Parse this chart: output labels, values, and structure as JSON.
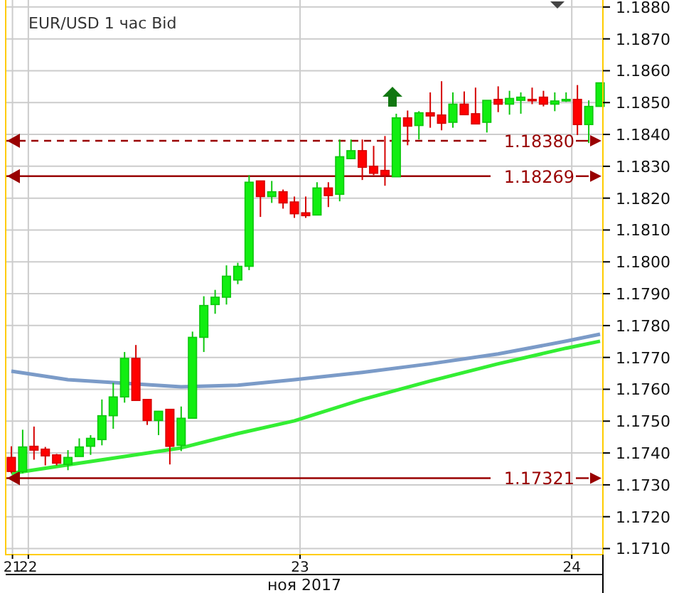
{
  "chart_data": {
    "type": "candlestick",
    "title": "EUR/USD  1 час Bid",
    "xlabel": "ноя 2017",
    "grid": true,
    "xlim": [
      "2017-11-21T22:00",
      "2017-11-24T02:45"
    ],
    "xticks": [
      {
        "value": "2017-11-21T22:36",
        "label": "21"
      },
      {
        "value": "2017-11-22T00:00",
        "label": "22"
      },
      {
        "value": "2017-11-23T00:00",
        "label": "23"
      },
      {
        "value": "2017-11-24T00:00",
        "label": "24"
      }
    ],
    "ylim": [
      1.17081,
      1.18822
    ],
    "yticks": [
      {
        "value": 1.171,
        "label": "1.1710"
      },
      {
        "value": 1.172,
        "label": "1.1720"
      },
      {
        "value": 1.173,
        "label": "1.1730"
      },
      {
        "value": 1.174,
        "label": "1.1740"
      },
      {
        "value": 1.175,
        "label": "1.1750"
      },
      {
        "value": 1.176,
        "label": "1.1760"
      },
      {
        "value": 1.177,
        "label": "1.1770"
      },
      {
        "value": 1.178,
        "label": "1.1780"
      },
      {
        "value": 1.179,
        "label": "1.1790"
      },
      {
        "value": 1.18,
        "label": "1.1800"
      },
      {
        "value": 1.181,
        "label": "1.1810"
      },
      {
        "value": 1.182,
        "label": "1.1820"
      },
      {
        "value": 1.183,
        "label": "1.1830"
      },
      {
        "value": 1.184,
        "label": "1.1840"
      },
      {
        "value": 1.185,
        "label": "1.1850"
      },
      {
        "value": 1.186,
        "label": "1.1860"
      },
      {
        "value": 1.187,
        "label": "1.1870"
      },
      {
        "value": 1.188,
        "label": "1.1880"
      }
    ],
    "x": [
      "2017-11-21T22:30",
      "2017-11-21T23:30",
      "2017-11-22T00:30",
      "2017-11-22T01:30",
      "2017-11-22T02:30",
      "2017-11-22T03:30",
      "2017-11-22T04:30",
      "2017-11-22T05:30",
      "2017-11-22T06:30",
      "2017-11-22T07:30",
      "2017-11-22T08:30",
      "2017-11-22T09:30",
      "2017-11-22T10:30",
      "2017-11-22T11:30",
      "2017-11-22T12:30",
      "2017-11-22T13:30",
      "2017-11-22T14:30",
      "2017-11-22T15:30",
      "2017-11-22T16:30",
      "2017-11-22T17:30",
      "2017-11-22T18:30",
      "2017-11-22T19:30",
      "2017-11-22T20:30",
      "2017-11-22T21:30",
      "2017-11-22T22:30",
      "2017-11-22T23:30",
      "2017-11-23T00:30",
      "2017-11-23T01:30",
      "2017-11-23T02:30",
      "2017-11-23T03:30",
      "2017-11-23T04:30",
      "2017-11-23T05:30",
      "2017-11-23T06:30",
      "2017-11-23T07:30",
      "2017-11-23T08:30",
      "2017-11-23T09:30",
      "2017-11-23T10:30",
      "2017-11-23T11:30",
      "2017-11-23T12:30",
      "2017-11-23T13:30",
      "2017-11-23T14:30",
      "2017-11-23T15:30",
      "2017-11-23T16:30",
      "2017-11-23T17:30",
      "2017-11-23T18:30",
      "2017-11-23T19:30",
      "2017-11-23T20:30",
      "2017-11-23T21:30",
      "2017-11-23T22:30",
      "2017-11-23T23:30",
      "2017-11-24T00:30",
      "2017-11-24T01:30",
      "2017-11-24T02:30"
    ],
    "ohlc": [
      [
        1.17386,
        1.17421,
        1.17336,
        1.17342
      ],
      [
        1.17342,
        1.17473,
        1.17336,
        1.17419
      ],
      [
        1.17421,
        1.17483,
        1.17379,
        1.17409
      ],
      [
        1.17412,
        1.17419,
        1.17361,
        1.17391
      ],
      [
        1.17394,
        1.17397,
        1.17361,
        1.17368
      ],
      [
        1.17364,
        1.17409,
        1.17346,
        1.17386
      ],
      [
        1.17389,
        1.17446,
        1.17389,
        1.17419
      ],
      [
        1.17421,
        1.17456,
        1.17394,
        1.17446
      ],
      [
        1.17442,
        1.17568,
        1.17424,
        1.17517
      ],
      [
        1.17517,
        1.1762,
        1.17476,
        1.17576
      ],
      [
        1.17576,
        1.17717,
        1.17558,
        1.17697
      ],
      [
        1.17697,
        1.17739,
        1.17565,
        1.17565
      ],
      [
        1.17568,
        1.17568,
        1.17488,
        1.17502
      ],
      [
        1.17502,
        1.17532,
        1.17456,
        1.17531
      ],
      [
        1.17537,
        1.17537,
        1.17364,
        1.17421
      ],
      [
        1.17424,
        1.17546,
        1.17406,
        1.17509
      ],
      [
        1.17509,
        1.17781,
        1.17509,
        1.17763
      ],
      [
        1.17763,
        1.17892,
        1.17717,
        1.17863
      ],
      [
        1.17866,
        1.17912,
        1.17837,
        1.17889
      ],
      [
        1.17889,
        1.17989,
        1.17866,
        1.17955
      ],
      [
        1.17943,
        1.17997,
        1.1793,
        1.17986
      ],
      [
        1.17986,
        1.18272,
        1.17974,
        1.1825
      ],
      [
        1.18254,
        1.18254,
        1.18141,
        1.18205
      ],
      [
        1.18205,
        1.18254,
        1.18185,
        1.1822
      ],
      [
        1.1822,
        1.18227,
        1.18167,
        1.18185
      ],
      [
        1.18188,
        1.18205,
        1.18138,
        1.18151
      ],
      [
        1.18154,
        1.18205,
        1.18138,
        1.18145
      ],
      [
        1.18147,
        1.1825,
        1.18147,
        1.18232
      ],
      [
        1.18232,
        1.1825,
        1.18172,
        1.18208
      ],
      [
        1.18212,
        1.18384,
        1.1819,
        1.1833
      ],
      [
        1.18324,
        1.18384,
        1.18324,
        1.18349
      ],
      [
        1.18349,
        1.18384,
        1.18257,
        1.18297
      ],
      [
        1.183,
        1.18364,
        1.18272,
        1.18278
      ],
      [
        1.18287,
        1.18395,
        1.18239,
        1.18272
      ],
      [
        1.18267,
        1.18465,
        1.18267,
        1.18452
      ],
      [
        1.18452,
        1.18475,
        1.18366,
        1.18426
      ],
      [
        1.18428,
        1.18473,
        1.18384,
        1.18468
      ],
      [
        1.18468,
        1.18532,
        1.18421,
        1.18458
      ],
      [
        1.18461,
        1.18567,
        1.18413,
        1.18435
      ],
      [
        1.18438,
        1.18532,
        1.18421,
        1.18495
      ],
      [
        1.18495,
        1.18535,
        1.18462,
        1.18462
      ],
      [
        1.18465,
        1.18547,
        1.18433,
        1.18433
      ],
      [
        1.18438,
        1.18507,
        1.18406,
        1.18507
      ],
      [
        1.1851,
        1.18551,
        1.1847,
        1.18495
      ],
      [
        1.18495,
        1.18537,
        1.18462,
        1.18513
      ],
      [
        1.18507,
        1.18532,
        1.18465,
        1.18517
      ],
      [
        1.1851,
        1.18547,
        1.18495,
        1.18507
      ],
      [
        1.18517,
        1.18537,
        1.18488,
        1.18495
      ],
      [
        1.18495,
        1.18532,
        1.18473,
        1.18505
      ],
      [
        1.18505,
        1.18532,
        1.18502,
        1.1851
      ],
      [
        1.1851,
        1.18555,
        1.18398,
        1.18431
      ],
      [
        1.18431,
        1.18507,
        1.18373,
        1.18488
      ],
      [
        1.18488,
        1.18562,
        1.18488,
        1.18562
      ]
    ],
    "colors": [
      "#ff0000",
      "#11ee11",
      "#ff0000",
      "#ff0000",
      "#ff0000",
      "#11ee11",
      "#11ee11",
      "#11ee11",
      "#11ee11",
      "#11ee11",
      "#11ee11",
      "#ff0000",
      "#ff0000",
      "#11ee11",
      "#ff0000",
      "#11ee11",
      "#11ee11",
      "#11ee11",
      "#11ee11",
      "#11ee11",
      "#11ee11",
      "#11ee11",
      "#ff0000",
      "#11ee11",
      "#ff0000",
      "#ff0000",
      "#ff0000",
      "#11ee11",
      "#ff0000",
      "#11ee11",
      "#11ee11",
      "#ff0000",
      "#ff0000",
      "#ff0000",
      "#11ee11",
      "#ff0000",
      "#11ee11",
      "#ff0000",
      "#ff0000",
      "#11ee11",
      "#ff0000",
      "#ff0000",
      "#11ee11",
      "#ff0000",
      "#11ee11",
      "#11ee11",
      "#ff0000",
      "#ff0000",
      "#11ee11",
      "#11ee11",
      "#ff0000",
      "#11ee11",
      "#11ee11"
    ],
    "series": [
      {
        "type": "line",
        "color": "#7b9bc8",
        "x": [
          "2017-11-21T22:30",
          "2017-11-22T03:30",
          "2017-11-22T08:30",
          "2017-11-22T13:30",
          "2017-11-22T18:30",
          "2017-11-22T23:30",
          "2017-11-23T05:30",
          "2017-11-23T11:30",
          "2017-11-23T17:30",
          "2017-11-23T23:30",
          "2017-11-24T02:30"
        ],
        "values": [
          1.17657,
          1.1763,
          1.17619,
          1.17608,
          1.17613,
          1.1763,
          1.17653,
          1.1768,
          1.17711,
          1.17751,
          1.17773
        ]
      },
      {
        "type": "line",
        "color": "#33ee33",
        "x": [
          "2017-11-21T22:30",
          "2017-11-22T03:30",
          "2017-11-22T08:30",
          "2017-11-22T13:30",
          "2017-11-22T18:30",
          "2017-11-22T23:30",
          "2017-11-23T05:30",
          "2017-11-23T11:30",
          "2017-11-23T17:30",
          "2017-11-23T23:30",
          "2017-11-24T02:30"
        ],
        "values": [
          1.17336,
          1.17363,
          1.17389,
          1.17416,
          1.17461,
          1.17501,
          1.17568,
          1.17626,
          1.1768,
          1.17729,
          1.17751
        ]
      }
    ],
    "ref_lines": [
      {
        "axis": "y",
        "value": 1.1838,
        "label": "1.18380",
        "color": "#990000",
        "line_style": "dashed"
      },
      {
        "axis": "y",
        "value": 1.18269,
        "label": "1.18269",
        "color": "#990000",
        "line_style": "solid"
      },
      {
        "axis": "y",
        "value": 1.17321,
        "label": "1.17321",
        "color": "#990000",
        "line_style": "solid"
      }
    ]
  }
}
